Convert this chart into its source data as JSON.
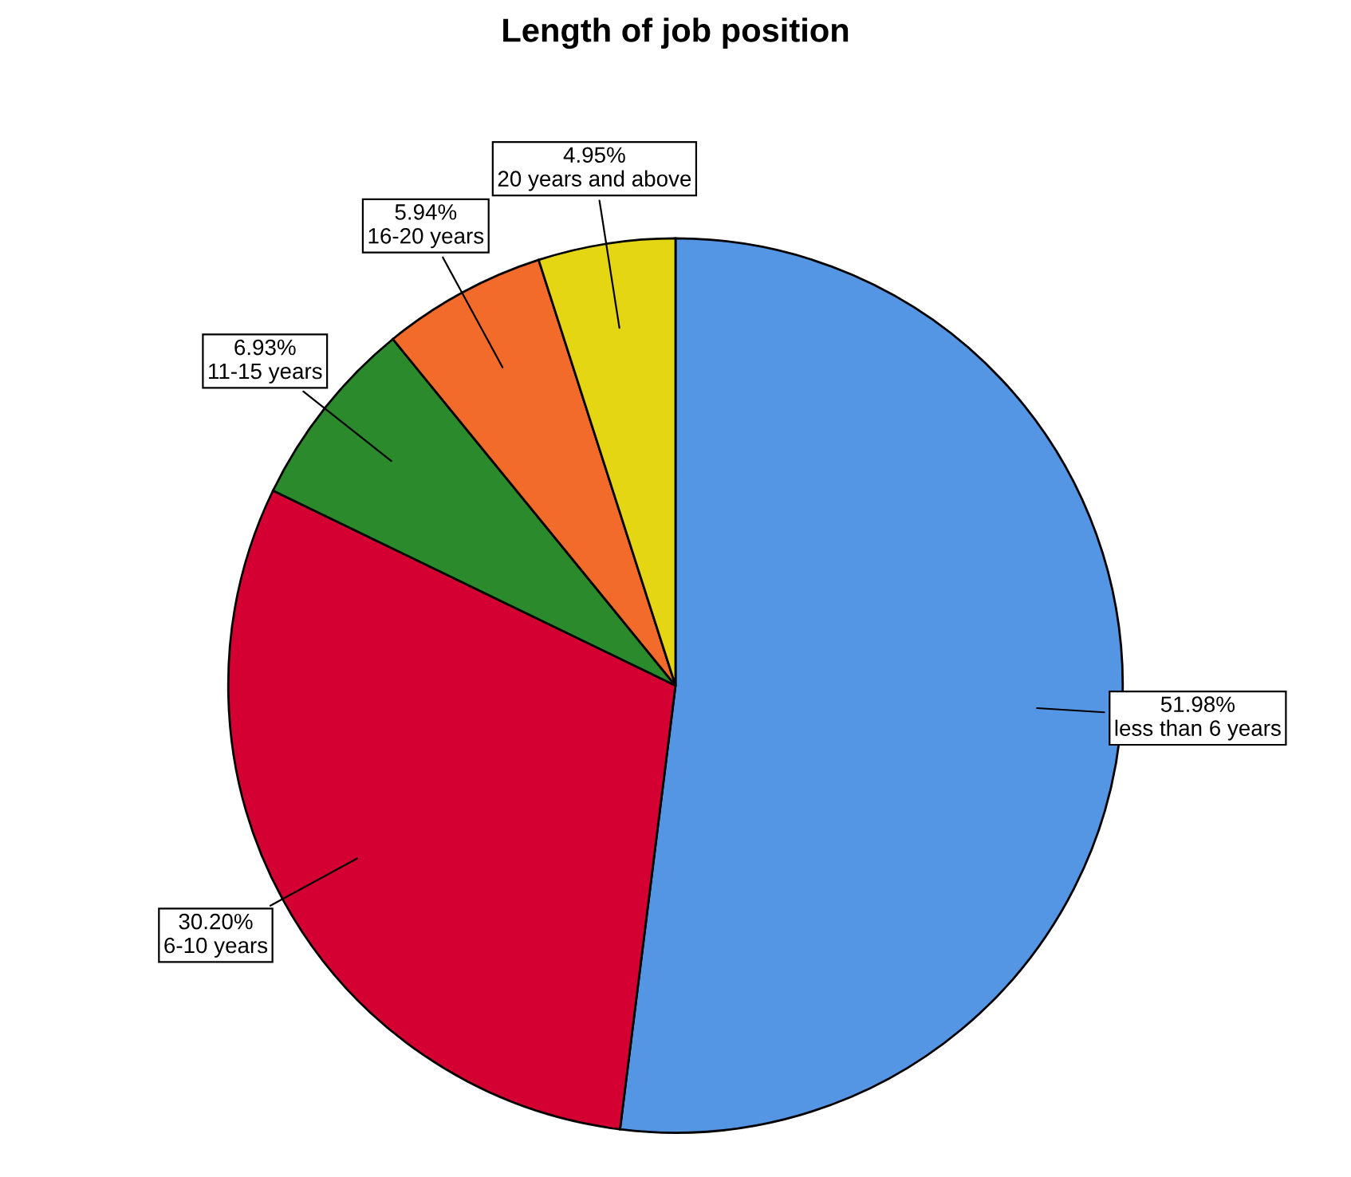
{
  "chart_data": {
    "type": "pie",
    "title": "Length of job position",
    "categories": [
      "less than 6 years",
      "6-10 years",
      "11-15 years",
      "16-20 years",
      "20 years and above"
    ],
    "values": [
      51.98,
      30.2,
      6.93,
      5.94,
      4.95
    ],
    "value_labels": [
      "51.98%",
      "30.20%",
      "6.93%",
      "5.94%",
      "4.95%"
    ],
    "colors": [
      "#5496e4",
      "#d50032",
      "#2b8a2b",
      "#f26b2b",
      "#e5d614"
    ]
  }
}
